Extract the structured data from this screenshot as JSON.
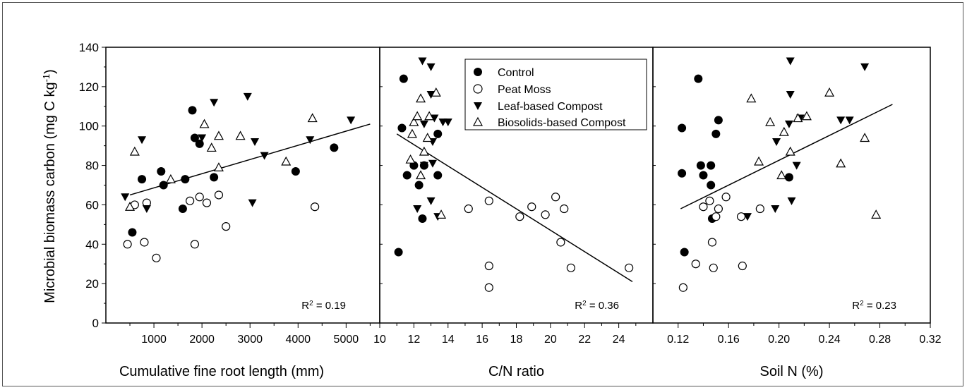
{
  "y_axis": {
    "label": "Microbial biomass carbon (mg C kg",
    "label_sup": "-1",
    "label_close": ")"
  },
  "legend": [
    {
      "label": "Control",
      "marker": "filled-circle"
    },
    {
      "label": "Peat Moss",
      "marker": "open-circle"
    },
    {
      "label": "Leaf-based Compost",
      "marker": "filled-triangle-down"
    },
    {
      "label": "Biosolids-based Compost",
      "marker": "open-triangle-up"
    }
  ],
  "chart_data": [
    {
      "type": "scatter",
      "xlabel": "Cumulative fine root length (mm)",
      "ylabel": "Microbial biomass carbon (mg C kg-1)",
      "xlim": [
        0,
        5700
      ],
      "ylim": [
        0,
        140
      ],
      "x_ticks": [
        1000,
        2000,
        3000,
        4000,
        5000
      ],
      "y_ticks": [
        0,
        20,
        40,
        60,
        80,
        100,
        120,
        140
      ],
      "r2": {
        "prefix": "R",
        "sup": "2",
        "value": " = 0.19"
      },
      "regression": {
        "x": [
          500,
          5500
        ],
        "y": [
          65,
          101
        ]
      },
      "series": [
        {
          "name": "Control",
          "points": [
            [
              550,
              46
            ],
            [
              750,
              73
            ],
            [
              1150,
              77
            ],
            [
              1200,
              70
            ],
            [
              1600,
              58
            ],
            [
              1650,
              73
            ],
            [
              1800,
              108
            ],
            [
              1850,
              94
            ],
            [
              1950,
              91
            ],
            [
              2250,
              74
            ],
            [
              3950,
              77
            ],
            [
              4750,
              89
            ]
          ]
        },
        {
          "name": "Peat Moss",
          "points": [
            [
              450,
              40
            ],
            [
              600,
              60
            ],
            [
              800,
              41
            ],
            [
              850,
              61
            ],
            [
              1050,
              33
            ],
            [
              1750,
              62
            ],
            [
              1850,
              40
            ],
            [
              1950,
              64
            ],
            [
              2100,
              61
            ],
            [
              2350,
              65
            ],
            [
              2500,
              49
            ],
            [
              4350,
              59
            ]
          ]
        },
        {
          "name": "Leaf-based Compost",
          "points": [
            [
              400,
              64
            ],
            [
              750,
              93
            ],
            [
              850,
              58
            ],
            [
              2000,
              94
            ],
            [
              2250,
              112
            ],
            [
              2950,
              115
            ],
            [
              3050,
              61
            ],
            [
              3100,
              92
            ],
            [
              3300,
              85
            ],
            [
              4250,
              93
            ],
            [
              5100,
              103
            ]
          ]
        },
        {
          "name": "Biosolids-based Compost",
          "points": [
            [
              500,
              59
            ],
            [
              600,
              87
            ],
            [
              1350,
              73
            ],
            [
              2050,
              101
            ],
            [
              2200,
              89
            ],
            [
              2350,
              79
            ],
            [
              2350,
              95
            ],
            [
              2800,
              95
            ],
            [
              3750,
              82
            ],
            [
              4300,
              104
            ]
          ]
        }
      ]
    },
    {
      "type": "scatter",
      "xlabel": "C/N ratio",
      "ylabel": "",
      "xlim": [
        10,
        26
      ],
      "ylim": [
        0,
        140
      ],
      "x_ticks": [
        10,
        12,
        14,
        16,
        18,
        20,
        22,
        24
      ],
      "y_ticks": [],
      "r2": {
        "prefix": "R",
        "sup": "2",
        "value": " = 0.36"
      },
      "regression": {
        "x": [
          11,
          24.8
        ],
        "y": [
          96,
          21
        ]
      },
      "series": [
        {
          "name": "Control",
          "points": [
            [
              11.1,
              36
            ],
            [
              11.3,
              99
            ],
            [
              11.4,
              124
            ],
            [
              11.6,
              75
            ],
            [
              12.0,
              80
            ],
            [
              12.3,
              70
            ],
            [
              12.5,
              53
            ],
            [
              12.6,
              80
            ],
            [
              13.4,
              96
            ],
            [
              13.4,
              75
            ]
          ]
        },
        {
          "name": "Peat Moss",
          "points": [
            [
              15.2,
              58
            ],
            [
              16.4,
              62
            ],
            [
              16.4,
              29
            ],
            [
              16.4,
              18
            ],
            [
              18.2,
              54
            ],
            [
              18.9,
              59
            ],
            [
              19.7,
              55
            ],
            [
              20.3,
              64
            ],
            [
              20.6,
              41
            ],
            [
              20.8,
              58
            ],
            [
              21.2,
              28
            ],
            [
              24.6,
              28
            ]
          ]
        },
        {
          "name": "Leaf-based Compost",
          "points": [
            [
              12.2,
              58
            ],
            [
              12.5,
              133
            ],
            [
              12.6,
              101
            ],
            [
              12.6,
              80
            ],
            [
              13.0,
              130
            ],
            [
              13.0,
              116
            ],
            [
              13.0,
              62
            ],
            [
              13.1,
              92
            ],
            [
              13.1,
              81
            ],
            [
              13.2,
              104
            ],
            [
              13.4,
              54
            ],
            [
              13.7,
              102
            ],
            [
              14.0,
              102
            ]
          ]
        },
        {
          "name": "Biosolids-based Compost",
          "points": [
            [
              11.8,
              83
            ],
            [
              11.9,
              96
            ],
            [
              12.0,
              102
            ],
            [
              12.2,
              105
            ],
            [
              12.4,
              75
            ],
            [
              12.4,
              114
            ],
            [
              12.6,
              87
            ],
            [
              12.8,
              94
            ],
            [
              12.9,
              105
            ],
            [
              13.3,
              117
            ],
            [
              13.6,
              55
            ]
          ]
        }
      ]
    },
    {
      "type": "scatter",
      "xlabel": "Soil N (%)",
      "ylabel": "",
      "xlim": [
        0.1,
        0.32
      ],
      "ylim": [
        0,
        140
      ],
      "x_ticks": [
        0.12,
        0.16,
        0.2,
        0.24,
        0.28,
        0.32
      ],
      "tick_labels": [
        "0.12",
        "0.16",
        "0.20",
        "0.24",
        "0.28",
        "0.32"
      ],
      "minor_ticks": [
        0.14,
        0.18,
        0.22,
        0.26,
        0.3
      ],
      "y_ticks": [],
      "r2": {
        "prefix": "R",
        "sup": "2",
        "value": " = 0.23"
      },
      "regression": {
        "x": [
          0.122,
          0.29
        ],
        "y": [
          58,
          111
        ]
      },
      "series": [
        {
          "name": "Control",
          "points": [
            [
              0.123,
              99
            ],
            [
              0.123,
              76
            ],
            [
              0.125,
              36
            ],
            [
              0.136,
              124
            ],
            [
              0.138,
              80
            ],
            [
              0.14,
              75
            ],
            [
              0.146,
              80
            ],
            [
              0.146,
              70
            ],
            [
              0.147,
              53
            ],
            [
              0.15,
              96
            ],
            [
              0.152,
              103
            ],
            [
              0.208,
              74
            ]
          ]
        },
        {
          "name": "Peat Moss",
          "points": [
            [
              0.124,
              18
            ],
            [
              0.134,
              30
            ],
            [
              0.14,
              59
            ],
            [
              0.145,
              62
            ],
            [
              0.147,
              41
            ],
            [
              0.148,
              28
            ],
            [
              0.15,
              54
            ],
            [
              0.152,
              58
            ],
            [
              0.158,
              64
            ],
            [
              0.17,
              54
            ],
            [
              0.171,
              29
            ],
            [
              0.185,
              58
            ]
          ]
        },
        {
          "name": "Leaf-based Compost",
          "points": [
            [
              0.175,
              54
            ],
            [
              0.197,
              58
            ],
            [
              0.198,
              92
            ],
            [
              0.208,
              101
            ],
            [
              0.209,
              116
            ],
            [
              0.209,
              133
            ],
            [
              0.21,
              62
            ],
            [
              0.214,
              80
            ],
            [
              0.217,
              104
            ],
            [
              0.249,
              103
            ],
            [
              0.256,
              103
            ],
            [
              0.268,
              130
            ]
          ]
        },
        {
          "name": "Biosolids-based Compost",
          "points": [
            [
              0.178,
              114
            ],
            [
              0.184,
              82
            ],
            [
              0.193,
              102
            ],
            [
              0.202,
              75
            ],
            [
              0.204,
              97
            ],
            [
              0.209,
              87
            ],
            [
              0.215,
              104
            ],
            [
              0.222,
              105
            ],
            [
              0.24,
              117
            ],
            [
              0.249,
              81
            ],
            [
              0.268,
              94
            ],
            [
              0.277,
              55
            ]
          ]
        }
      ]
    }
  ]
}
